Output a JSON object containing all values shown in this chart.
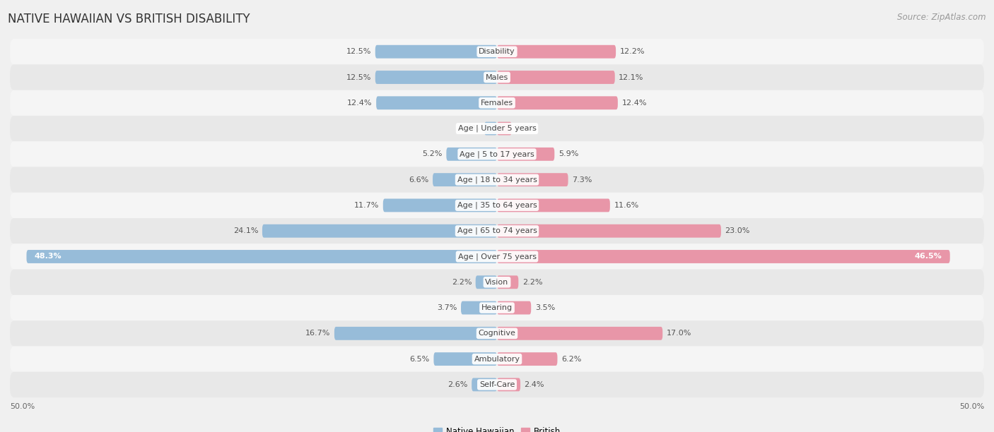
{
  "title": "NATIVE HAWAIIAN VS BRITISH DISABILITY",
  "source": "Source: ZipAtlas.com",
  "categories": [
    "Disability",
    "Males",
    "Females",
    "Age | Under 5 years",
    "Age | 5 to 17 years",
    "Age | 18 to 34 years",
    "Age | 35 to 64 years",
    "Age | 65 to 74 years",
    "Age | Over 75 years",
    "Vision",
    "Hearing",
    "Cognitive",
    "Ambulatory",
    "Self-Care"
  ],
  "native_hawaiian": [
    12.5,
    12.5,
    12.4,
    1.3,
    5.2,
    6.6,
    11.7,
    24.1,
    48.3,
    2.2,
    3.7,
    16.7,
    6.5,
    2.6
  ],
  "british": [
    12.2,
    12.1,
    12.4,
    1.5,
    5.9,
    7.3,
    11.6,
    23.0,
    46.5,
    2.2,
    3.5,
    17.0,
    6.2,
    2.4
  ],
  "max_val": 50.0,
  "bar_color_nh": "#97bcd9",
  "bar_color_br": "#e896a8",
  "bg_color": "#f0f0f0",
  "row_bg_odd": "#f5f5f5",
  "row_bg_even": "#e8e8e8",
  "title_fontsize": 12,
  "source_fontsize": 8.5,
  "label_fontsize": 8,
  "bar_height": 0.52,
  "axis_label_left": "50.0%",
  "axis_label_right": "50.0%",
  "legend_label_nh": "Native Hawaiian",
  "legend_label_br": "British"
}
